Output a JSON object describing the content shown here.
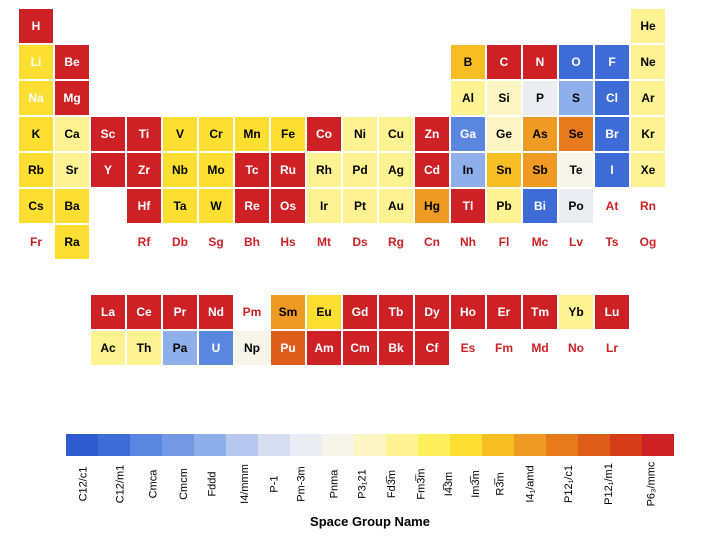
{
  "axis_label": "Space Group Name",
  "cell_size": 36,
  "colorbar": {
    "labels": [
      "C12/c1",
      "C12/m1",
      "Cmca",
      "Cmcm",
      "Fddd",
      "I4/mmm",
      "P-1",
      "Pm-3m",
      "Pnma",
      "P3₁21",
      "Fd3̅m",
      "Fm3̅m",
      "I4̅3m",
      "Im3̅m",
      "R3̅m",
      "I4₁/amd",
      "P12₁/c1",
      "P12₁/m1",
      "P6₃/mmc"
    ],
    "colors": [
      "#2e5bcd",
      "#3e6cd6",
      "#5a86df",
      "#7499e2",
      "#8fafea",
      "#b7c7ef",
      "#d6ddf1",
      "#ecedf3",
      "#f7f5e9",
      "#fbf6c4",
      "#fef392",
      "#fdef5c",
      "#fcdf31",
      "#f7be24",
      "#ee9a23",
      "#e67a1d",
      "#de5d1b",
      "#d43c1a",
      "#cd2126"
    ]
  },
  "elements": [
    {
      "s": "H",
      "r": 1,
      "c": 1,
      "bg": "#cd2126",
      "fg": "#fff"
    },
    {
      "s": "He",
      "r": 1,
      "c": 18,
      "bg": "#fef392",
      "fg": "#000"
    },
    {
      "s": "Li",
      "r": 2,
      "c": 1,
      "bg": "#fcdf31",
      "fg": "#fff"
    },
    {
      "s": "Be",
      "r": 2,
      "c": 2,
      "bg": "#cd2126",
      "fg": "#fff"
    },
    {
      "s": "B",
      "r": 2,
      "c": 13,
      "bg": "#f7be24",
      "fg": "#000"
    },
    {
      "s": "C",
      "r": 2,
      "c": 14,
      "bg": "#cd2126",
      "fg": "#fff"
    },
    {
      "s": "N",
      "r": 2,
      "c": 15,
      "bg": "#cd2126",
      "fg": "#fff"
    },
    {
      "s": "O",
      "r": 2,
      "c": 16,
      "bg": "#3e6cd6",
      "fg": "#fff"
    },
    {
      "s": "F",
      "r": 2,
      "c": 17,
      "bg": "#3e6cd6",
      "fg": "#fff"
    },
    {
      "s": "Ne",
      "r": 2,
      "c": 18,
      "bg": "#fef392",
      "fg": "#000"
    },
    {
      "s": "Na",
      "r": 3,
      "c": 1,
      "bg": "#fcdf31",
      "fg": "#fff"
    },
    {
      "s": "Mg",
      "r": 3,
      "c": 2,
      "bg": "#cd2126",
      "fg": "#fff"
    },
    {
      "s": "Al",
      "r": 3,
      "c": 13,
      "bg": "#fef392",
      "fg": "#000"
    },
    {
      "s": "Si",
      "r": 3,
      "c": 14,
      "bg": "#fbf6c4",
      "fg": "#000"
    },
    {
      "s": "P",
      "r": 3,
      "c": 15,
      "bg": "#ecedf3",
      "fg": "#000"
    },
    {
      "s": "S",
      "r": 3,
      "c": 16,
      "bg": "#8fafea",
      "fg": "#000"
    },
    {
      "s": "Cl",
      "r": 3,
      "c": 17,
      "bg": "#3e6cd6",
      "fg": "#fff"
    },
    {
      "s": "Ar",
      "r": 3,
      "c": 18,
      "bg": "#fef392",
      "fg": "#000"
    },
    {
      "s": "K",
      "r": 4,
      "c": 1,
      "bg": "#fcdf31",
      "fg": "#000"
    },
    {
      "s": "Ca",
      "r": 4,
      "c": 2,
      "bg": "#fef392",
      "fg": "#000"
    },
    {
      "s": "Sc",
      "r": 4,
      "c": 3,
      "bg": "#cd2126",
      "fg": "#fff"
    },
    {
      "s": "Ti",
      "r": 4,
      "c": 4,
      "bg": "#cd2126",
      "fg": "#fff"
    },
    {
      "s": "V",
      "r": 4,
      "c": 5,
      "bg": "#fcdf31",
      "fg": "#000"
    },
    {
      "s": "Cr",
      "r": 4,
      "c": 6,
      "bg": "#fcdf31",
      "fg": "#000"
    },
    {
      "s": "Mn",
      "r": 4,
      "c": 7,
      "bg": "#fcdf31",
      "fg": "#000"
    },
    {
      "s": "Fe",
      "r": 4,
      "c": 8,
      "bg": "#fcdf31",
      "fg": "#000"
    },
    {
      "s": "Co",
      "r": 4,
      "c": 9,
      "bg": "#cd2126",
      "fg": "#fff"
    },
    {
      "s": "Ni",
      "r": 4,
      "c": 10,
      "bg": "#fef392",
      "fg": "#000"
    },
    {
      "s": "Cu",
      "r": 4,
      "c": 11,
      "bg": "#fef392",
      "fg": "#000"
    },
    {
      "s": "Zn",
      "r": 4,
      "c": 12,
      "bg": "#cd2126",
      "fg": "#fff"
    },
    {
      "s": "Ga",
      "r": 4,
      "c": 13,
      "bg": "#5a86df",
      "fg": "#fff"
    },
    {
      "s": "Ge",
      "r": 4,
      "c": 14,
      "bg": "#fbf6c4",
      "fg": "#000"
    },
    {
      "s": "As",
      "r": 4,
      "c": 15,
      "bg": "#ee9a23",
      "fg": "#000"
    },
    {
      "s": "Se",
      "r": 4,
      "c": 16,
      "bg": "#e67a1d",
      "fg": "#000"
    },
    {
      "s": "Br",
      "r": 4,
      "c": 17,
      "bg": "#3e6cd6",
      "fg": "#fff"
    },
    {
      "s": "Kr",
      "r": 4,
      "c": 18,
      "bg": "#fef392",
      "fg": "#000"
    },
    {
      "s": "Rb",
      "r": 5,
      "c": 1,
      "bg": "#fcdf31",
      "fg": "#000"
    },
    {
      "s": "Sr",
      "r": 5,
      "c": 2,
      "bg": "#fef392",
      "fg": "#000"
    },
    {
      "s": "Y",
      "r": 5,
      "c": 3,
      "bg": "#cd2126",
      "fg": "#fff"
    },
    {
      "s": "Zr",
      "r": 5,
      "c": 4,
      "bg": "#cd2126",
      "fg": "#fff"
    },
    {
      "s": "Nb",
      "r": 5,
      "c": 5,
      "bg": "#fcdf31",
      "fg": "#000"
    },
    {
      "s": "Mo",
      "r": 5,
      "c": 6,
      "bg": "#fcdf31",
      "fg": "#000"
    },
    {
      "s": "Tc",
      "r": 5,
      "c": 7,
      "bg": "#cd2126",
      "fg": "#fff"
    },
    {
      "s": "Ru",
      "r": 5,
      "c": 8,
      "bg": "#cd2126",
      "fg": "#fff"
    },
    {
      "s": "Rh",
      "r": 5,
      "c": 9,
      "bg": "#fef392",
      "fg": "#000"
    },
    {
      "s": "Pd",
      "r": 5,
      "c": 10,
      "bg": "#fef392",
      "fg": "#000"
    },
    {
      "s": "Ag",
      "r": 5,
      "c": 11,
      "bg": "#fef392",
      "fg": "#000"
    },
    {
      "s": "Cd",
      "r": 5,
      "c": 12,
      "bg": "#cd2126",
      "fg": "#fff"
    },
    {
      "s": "In",
      "r": 5,
      "c": 13,
      "bg": "#8fafea",
      "fg": "#000"
    },
    {
      "s": "Sn",
      "r": 5,
      "c": 14,
      "bg": "#f7be24",
      "fg": "#000"
    },
    {
      "s": "Sb",
      "r": 5,
      "c": 15,
      "bg": "#ee9a23",
      "fg": "#000"
    },
    {
      "s": "Te",
      "r": 5,
      "c": 16,
      "bg": "#f7f5e9",
      "fg": "#000"
    },
    {
      "s": "I",
      "r": 5,
      "c": 17,
      "bg": "#3e6cd6",
      "fg": "#fff"
    },
    {
      "s": "Xe",
      "r": 5,
      "c": 18,
      "bg": "#fef392",
      "fg": "#000"
    },
    {
      "s": "Cs",
      "r": 6,
      "c": 1,
      "bg": "#fcdf31",
      "fg": "#000"
    },
    {
      "s": "Ba",
      "r": 6,
      "c": 2,
      "bg": "#fcdf31",
      "fg": "#000"
    },
    {
      "s": "Hf",
      "r": 6,
      "c": 4,
      "bg": "#cd2126",
      "fg": "#fff"
    },
    {
      "s": "Ta",
      "r": 6,
      "c": 5,
      "bg": "#fcdf31",
      "fg": "#000"
    },
    {
      "s": "W",
      "r": 6,
      "c": 6,
      "bg": "#fcdf31",
      "fg": "#000"
    },
    {
      "s": "Re",
      "r": 6,
      "c": 7,
      "bg": "#cd2126",
      "fg": "#fff"
    },
    {
      "s": "Os",
      "r": 6,
      "c": 8,
      "bg": "#cd2126",
      "fg": "#fff"
    },
    {
      "s": "Ir",
      "r": 6,
      "c": 9,
      "bg": "#fef392",
      "fg": "#000"
    },
    {
      "s": "Pt",
      "r": 6,
      "c": 10,
      "bg": "#fef392",
      "fg": "#000"
    },
    {
      "s": "Au",
      "r": 6,
      "c": 11,
      "bg": "#fef392",
      "fg": "#000"
    },
    {
      "s": "Hg",
      "r": 6,
      "c": 12,
      "bg": "#ee9a23",
      "fg": "#000"
    },
    {
      "s": "Tl",
      "r": 6,
      "c": 13,
      "bg": "#cd2126",
      "fg": "#fff"
    },
    {
      "s": "Pb",
      "r": 6,
      "c": 14,
      "bg": "#fef392",
      "fg": "#000"
    },
    {
      "s": "Bi",
      "r": 6,
      "c": 15,
      "bg": "#3e6cd6",
      "fg": "#fff"
    },
    {
      "s": "Po",
      "r": 6,
      "c": 16,
      "bg": "#ecedf3",
      "fg": "#000"
    },
    {
      "s": "At",
      "r": 6,
      "c": 17,
      "bg": null,
      "fg": "#cd2126",
      "open": true
    },
    {
      "s": "Rn",
      "r": 6,
      "c": 18,
      "bg": null,
      "fg": "#cd2126",
      "open": true
    },
    {
      "s": "Fr",
      "r": 7,
      "c": 1,
      "bg": null,
      "fg": "#cd2126",
      "open": true
    },
    {
      "s": "Ra",
      "r": 7,
      "c": 2,
      "bg": "#fcdf31",
      "fg": "#000"
    },
    {
      "s": "Rf",
      "r": 7,
      "c": 4,
      "bg": null,
      "fg": "#cd2126",
      "open": true
    },
    {
      "s": "Db",
      "r": 7,
      "c": 5,
      "bg": null,
      "fg": "#cd2126",
      "open": true
    },
    {
      "s": "Sg",
      "r": 7,
      "c": 6,
      "bg": null,
      "fg": "#cd2126",
      "open": true
    },
    {
      "s": "Bh",
      "r": 7,
      "c": 7,
      "bg": null,
      "fg": "#cd2126",
      "open": true
    },
    {
      "s": "Hs",
      "r": 7,
      "c": 8,
      "bg": null,
      "fg": "#cd2126",
      "open": true
    },
    {
      "s": "Mt",
      "r": 7,
      "c": 9,
      "bg": null,
      "fg": "#cd2126",
      "open": true
    },
    {
      "s": "Ds",
      "r": 7,
      "c": 10,
      "bg": null,
      "fg": "#cd2126",
      "open": true
    },
    {
      "s": "Rg",
      "r": 7,
      "c": 11,
      "bg": null,
      "fg": "#cd2126",
      "open": true
    },
    {
      "s": "Cn",
      "r": 7,
      "c": 12,
      "bg": null,
      "fg": "#cd2126",
      "open": true
    },
    {
      "s": "Nh",
      "r": 7,
      "c": 13,
      "bg": null,
      "fg": "#cd2126",
      "open": true
    },
    {
      "s": "Fl",
      "r": 7,
      "c": 14,
      "bg": null,
      "fg": "#cd2126",
      "open": true
    },
    {
      "s": "Mc",
      "r": 7,
      "c": 15,
      "bg": null,
      "fg": "#cd2126",
      "open": true
    },
    {
      "s": "Lv",
      "r": 7,
      "c": 16,
      "bg": null,
      "fg": "#cd2126",
      "open": true
    },
    {
      "s": "Ts",
      "r": 7,
      "c": 17,
      "bg": null,
      "fg": "#cd2126",
      "open": true
    },
    {
      "s": "Og",
      "r": 7,
      "c": 18,
      "bg": null,
      "fg": "#cd2126",
      "open": true
    }
  ],
  "lanthanides_actinides": [
    {
      "s": "La",
      "r": 1,
      "c": 1,
      "bg": "#cd2126",
      "fg": "#fff"
    },
    {
      "s": "Ce",
      "r": 1,
      "c": 2,
      "bg": "#cd2126",
      "fg": "#fff"
    },
    {
      "s": "Pr",
      "r": 1,
      "c": 3,
      "bg": "#cd2126",
      "fg": "#fff"
    },
    {
      "s": "Nd",
      "r": 1,
      "c": 4,
      "bg": "#cd2126",
      "fg": "#fff"
    },
    {
      "s": "Pm",
      "r": 1,
      "c": 5,
      "bg": null,
      "fg": "#cd2126",
      "open": true
    },
    {
      "s": "Sm",
      "r": 1,
      "c": 6,
      "bg": "#ee9a23",
      "fg": "#000"
    },
    {
      "s": "Eu",
      "r": 1,
      "c": 7,
      "bg": "#fcdf31",
      "fg": "#000"
    },
    {
      "s": "Gd",
      "r": 1,
      "c": 8,
      "bg": "#cd2126",
      "fg": "#fff"
    },
    {
      "s": "Tb",
      "r": 1,
      "c": 9,
      "bg": "#cd2126",
      "fg": "#fff"
    },
    {
      "s": "Dy",
      "r": 1,
      "c": 10,
      "bg": "#cd2126",
      "fg": "#fff"
    },
    {
      "s": "Ho",
      "r": 1,
      "c": 11,
      "bg": "#cd2126",
      "fg": "#fff"
    },
    {
      "s": "Er",
      "r": 1,
      "c": 12,
      "bg": "#cd2126",
      "fg": "#fff"
    },
    {
      "s": "Tm",
      "r": 1,
      "c": 13,
      "bg": "#cd2126",
      "fg": "#fff"
    },
    {
      "s": "Yb",
      "r": 1,
      "c": 14,
      "bg": "#fef392",
      "fg": "#000"
    },
    {
      "s": "Lu",
      "r": 1,
      "c": 15,
      "bg": "#cd2126",
      "fg": "#fff"
    },
    {
      "s": "Ac",
      "r": 2,
      "c": 1,
      "bg": "#fef392",
      "fg": "#000"
    },
    {
      "s": "Th",
      "r": 2,
      "c": 2,
      "bg": "#fef392",
      "fg": "#000"
    },
    {
      "s": "Pa",
      "r": 2,
      "c": 3,
      "bg": "#8fafea",
      "fg": "#000"
    },
    {
      "s": "U",
      "r": 2,
      "c": 4,
      "bg": "#5a86df",
      "fg": "#fff"
    },
    {
      "s": "Np",
      "r": 2,
      "c": 5,
      "bg": "#f7f5e9",
      "fg": "#000"
    },
    {
      "s": "Pu",
      "r": 2,
      "c": 6,
      "bg": "#de5d1b",
      "fg": "#fff"
    },
    {
      "s": "Am",
      "r": 2,
      "c": 7,
      "bg": "#cd2126",
      "fg": "#fff"
    },
    {
      "s": "Cm",
      "r": 2,
      "c": 8,
      "bg": "#cd2126",
      "fg": "#fff"
    },
    {
      "s": "Bk",
      "r": 2,
      "c": 9,
      "bg": "#cd2126",
      "fg": "#fff"
    },
    {
      "s": "Cf",
      "r": 2,
      "c": 10,
      "bg": "#cd2126",
      "fg": "#fff"
    },
    {
      "s": "Es",
      "r": 2,
      "c": 11,
      "bg": null,
      "fg": "#cd2126",
      "open": true
    },
    {
      "s": "Fm",
      "r": 2,
      "c": 12,
      "bg": null,
      "fg": "#cd2126",
      "open": true
    },
    {
      "s": "Md",
      "r": 2,
      "c": 13,
      "bg": null,
      "fg": "#cd2126",
      "open": true
    },
    {
      "s": "No",
      "r": 2,
      "c": 14,
      "bg": null,
      "fg": "#cd2126",
      "open": true
    },
    {
      "s": "Lr",
      "r": 2,
      "c": 15,
      "bg": null,
      "fg": "#cd2126",
      "open": true
    }
  ]
}
